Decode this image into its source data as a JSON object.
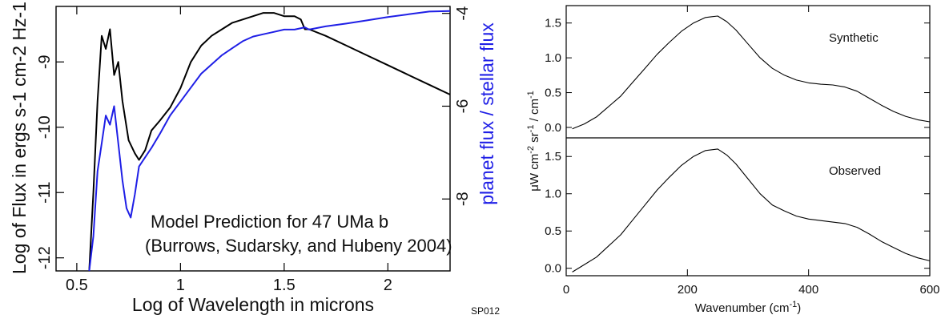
{
  "chart_data": [
    {
      "type": "line",
      "annotation_line1": "Model Prediction for 47 UMa b",
      "annotation_line2": "(Burrows, Sudarsky, and Hubeny 2004)",
      "xlabel": "Log of Wavelength in microns",
      "ylabel": "Log of Flux in ergs s-1 cm-2 Hz-1",
      "y2label": "planet flux / stellar flux",
      "xlim": [
        0.4,
        2.3
      ],
      "ylim": [
        -12.2,
        -8.15
      ],
      "y2lim": [
        -9.55,
        -3.85
      ],
      "xticks": [
        "0.5",
        "1",
        "1.5",
        "2"
      ],
      "yticks": [
        "-9",
        "-10",
        "-11",
        "-12"
      ],
      "y2ticks": [
        "-4",
        "-6",
        "-8"
      ],
      "series": [
        {
          "axis": "left",
          "color": "#000000",
          "x": [
            0.56,
            0.58,
            0.6,
            0.62,
            0.64,
            0.66,
            0.68,
            0.7,
            0.72,
            0.75,
            0.78,
            0.8,
            0.83,
            0.86,
            0.9,
            0.95,
            1.0,
            1.05,
            1.1,
            1.15,
            1.2,
            1.25,
            1.3,
            1.35,
            1.4,
            1.45,
            1.5,
            1.55,
            1.58,
            1.6,
            1.62,
            1.7,
            1.8,
            1.9,
            2.0,
            2.1,
            2.2,
            2.3
          ],
          "y": [
            -12.2,
            -11.0,
            -9.6,
            -8.6,
            -8.8,
            -8.5,
            -9.2,
            -9.0,
            -9.6,
            -10.2,
            -10.4,
            -10.5,
            -10.35,
            -10.05,
            -9.9,
            -9.7,
            -9.4,
            -9.0,
            -8.75,
            -8.6,
            -8.5,
            -8.4,
            -8.35,
            -8.3,
            -8.25,
            -8.25,
            -8.3,
            -8.3,
            -8.35,
            -8.5,
            -8.5,
            -8.6,
            -8.75,
            -8.9,
            -9.05,
            -9.2,
            -9.35,
            -9.5
          ]
        },
        {
          "axis": "right",
          "color": "#1f1fe6",
          "x": [
            0.56,
            0.58,
            0.6,
            0.62,
            0.64,
            0.66,
            0.68,
            0.7,
            0.72,
            0.74,
            0.76,
            0.78,
            0.8,
            0.83,
            0.86,
            0.9,
            0.95,
            1.0,
            1.05,
            1.1,
            1.15,
            1.2,
            1.25,
            1.3,
            1.35,
            1.4,
            1.45,
            1.5,
            1.55,
            1.6,
            1.62,
            1.7,
            1.8,
            1.9,
            2.0,
            2.1,
            2.2,
            2.3
          ],
          "y": [
            -9.55,
            -8.8,
            -7.4,
            -6.8,
            -6.2,
            -6.4,
            -6.0,
            -6.8,
            -7.6,
            -8.2,
            -8.4,
            -7.9,
            -7.3,
            -7.1,
            -6.9,
            -6.6,
            -6.2,
            -5.9,
            -5.6,
            -5.3,
            -5.1,
            -4.9,
            -4.75,
            -4.6,
            -4.5,
            -4.45,
            -4.4,
            -4.35,
            -4.35,
            -4.3,
            -4.35,
            -4.28,
            -4.22,
            -4.15,
            -4.08,
            -4.02,
            -3.96,
            -3.95
          ]
        }
      ]
    },
    {
      "type": "line",
      "xlabel": "Wavenumber (cm",
      "xlabel_sup": "-1",
      "xlabel_close": ")",
      "ylabel_main": "μW cm",
      "ylabel_sup1": "-2",
      "ylabel_mid": " sr",
      "ylabel_sup2": "-1",
      "ylabel_end": " / cm",
      "ylabel_sup3": "-1",
      "xlim": [
        0,
        600
      ],
      "xticks": [
        "0",
        "200",
        "400",
        "600"
      ],
      "panels": [
        {
          "name": "Synthetic",
          "ylim": [
            -0.15,
            1.75
          ],
          "yticks": [
            "1.5",
            "1.0",
            "0.5",
            "0.0"
          ],
          "x": [
            10,
            30,
            50,
            70,
            90,
            110,
            130,
            150,
            170,
            190,
            210,
            230,
            250,
            265,
            280,
            300,
            320,
            340,
            360,
            380,
            400,
            420,
            440,
            460,
            480,
            500,
            520,
            540,
            560,
            580,
            600
          ],
          "y": [
            -0.02,
            0.05,
            0.15,
            0.3,
            0.45,
            0.65,
            0.85,
            1.05,
            1.22,
            1.38,
            1.5,
            1.58,
            1.6,
            1.52,
            1.4,
            1.2,
            1.0,
            0.85,
            0.75,
            0.68,
            0.64,
            0.62,
            0.61,
            0.58,
            0.52,
            0.42,
            0.32,
            0.23,
            0.16,
            0.11,
            0.08
          ]
        },
        {
          "name": "Observed",
          "ylim": [
            -0.1,
            1.75
          ],
          "yticks": [
            "1.5",
            "1.0",
            "0.5",
            "0.0"
          ],
          "x": [
            10,
            30,
            50,
            70,
            90,
            110,
            130,
            150,
            170,
            190,
            210,
            230,
            250,
            265,
            280,
            300,
            320,
            340,
            360,
            380,
            400,
            420,
            440,
            460,
            480,
            500,
            520,
            540,
            560,
            580,
            600
          ],
          "y": [
            -0.05,
            0.05,
            0.15,
            0.3,
            0.45,
            0.65,
            0.85,
            1.05,
            1.22,
            1.38,
            1.5,
            1.58,
            1.6,
            1.52,
            1.4,
            1.2,
            1.0,
            0.85,
            0.77,
            0.7,
            0.66,
            0.64,
            0.62,
            0.6,
            0.55,
            0.46,
            0.36,
            0.28,
            0.2,
            0.14,
            0.1
          ]
        }
      ]
    }
  ],
  "figure_code": "SP012"
}
